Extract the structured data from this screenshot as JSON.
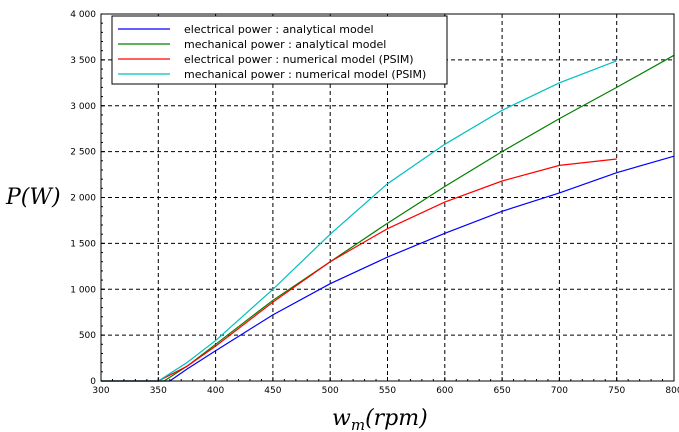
{
  "chart_data": {
    "type": "line",
    "title": "",
    "xlabel": "w_m(rpm)",
    "ylabel": "P(W)",
    "xlabel_parts": {
      "base": "w",
      "sub": "m",
      "rest": "(rpm)"
    },
    "ylabel_text": "P(W)",
    "xlim": [
      300,
      800
    ],
    "ylim": [
      0,
      4000
    ],
    "x_ticks": [
      300,
      350,
      400,
      450,
      500,
      550,
      600,
      650,
      700,
      750,
      800
    ],
    "y_ticks": [
      0,
      500,
      1000,
      1500,
      2000,
      2500,
      3000,
      3500,
      4000
    ],
    "y_tick_labels": [
      "0",
      "500",
      "1 000",
      "1 500",
      "2 000",
      "2 500",
      "3 000",
      "3 500",
      "4 000"
    ],
    "grid": true,
    "legend_position": "top-left",
    "series": [
      {
        "name": "electrical power : analytical model",
        "color": "#0000ff",
        "x": [
          300,
          350,
          360,
          375,
          400,
          450,
          500,
          550,
          600,
          650,
          700,
          750,
          800
        ],
        "y": [
          0,
          0,
          0,
          130,
          330,
          720,
          1060,
          1350,
          1610,
          1850,
          2050,
          2270,
          2450
        ]
      },
      {
        "name": "mechanical power : analytical model",
        "color": "#008000",
        "x": [
          300,
          350,
          355,
          375,
          400,
          450,
          500,
          550,
          600,
          650,
          700,
          750,
          800
        ],
        "y": [
          0,
          0,
          0,
          160,
          400,
          880,
          1300,
          1720,
          2120,
          2500,
          2860,
          3200,
          3550
        ]
      },
      {
        "name": "electrical power : numerical model (PSIM)",
        "color": "#ff0000",
        "x": [
          300,
          350,
          375,
          400,
          450,
          500,
          550,
          600,
          650,
          700,
          750
        ],
        "y": [
          0,
          0,
          160,
          380,
          860,
          1300,
          1660,
          1950,
          2180,
          2350,
          2420
        ]
      },
      {
        "name": "mechanical power : numerical model (PSIM)",
        "color": "#00bfbf",
        "x": [
          300,
          350,
          375,
          400,
          450,
          500,
          550,
          600,
          650,
          700,
          750
        ],
        "y": [
          0,
          0,
          200,
          440,
          1000,
          1600,
          2150,
          2580,
          2950,
          3250,
          3490
        ]
      }
    ]
  }
}
